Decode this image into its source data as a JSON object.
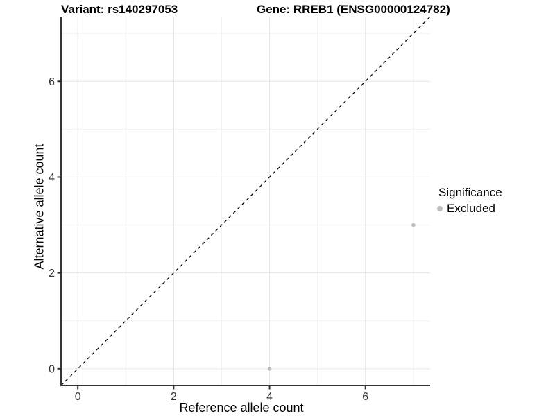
{
  "chart_data": {
    "type": "scatter",
    "title_variant": "Variant: rs140297053",
    "title_gene": "Gene: RREB1 (ENSG00000124782)",
    "xlabel": "Reference allele count",
    "ylabel": "Alternative allele count",
    "xlim": [
      -0.35,
      7.35
    ],
    "ylim": [
      -0.35,
      7.35
    ],
    "xticks": [
      0,
      2,
      4,
      6
    ],
    "yticks": [
      0,
      2,
      4,
      6
    ],
    "x_minor_gridlines": [
      1,
      3,
      5,
      7
    ],
    "y_minor_gridlines": [
      1,
      3,
      5,
      7
    ],
    "grid": "major and minor, light grey on white",
    "legend_position": "right",
    "series": [
      {
        "name": "Excluded",
        "color": "#bdbdbd",
        "points": [
          {
            "x": 7,
            "y": 3
          },
          {
            "x": 4,
            "y": 0
          }
        ]
      }
    ],
    "identity_line": {
      "style": "dashed",
      "color": "#000000",
      "from": {
        "x": -0.35,
        "y": -0.35
      },
      "to": {
        "x": 7.35,
        "y": 7.35
      }
    },
    "legend": {
      "title": "Significance",
      "entries": [
        {
          "label": "Excluded",
          "color": "#bdbdbd"
        }
      ]
    }
  },
  "colors": {
    "background": "#ffffff",
    "axis_line": "#333333",
    "tick_text": "#333333",
    "grid_major": "#e6e6e6",
    "grid_minor": "#f1f1f1"
  }
}
